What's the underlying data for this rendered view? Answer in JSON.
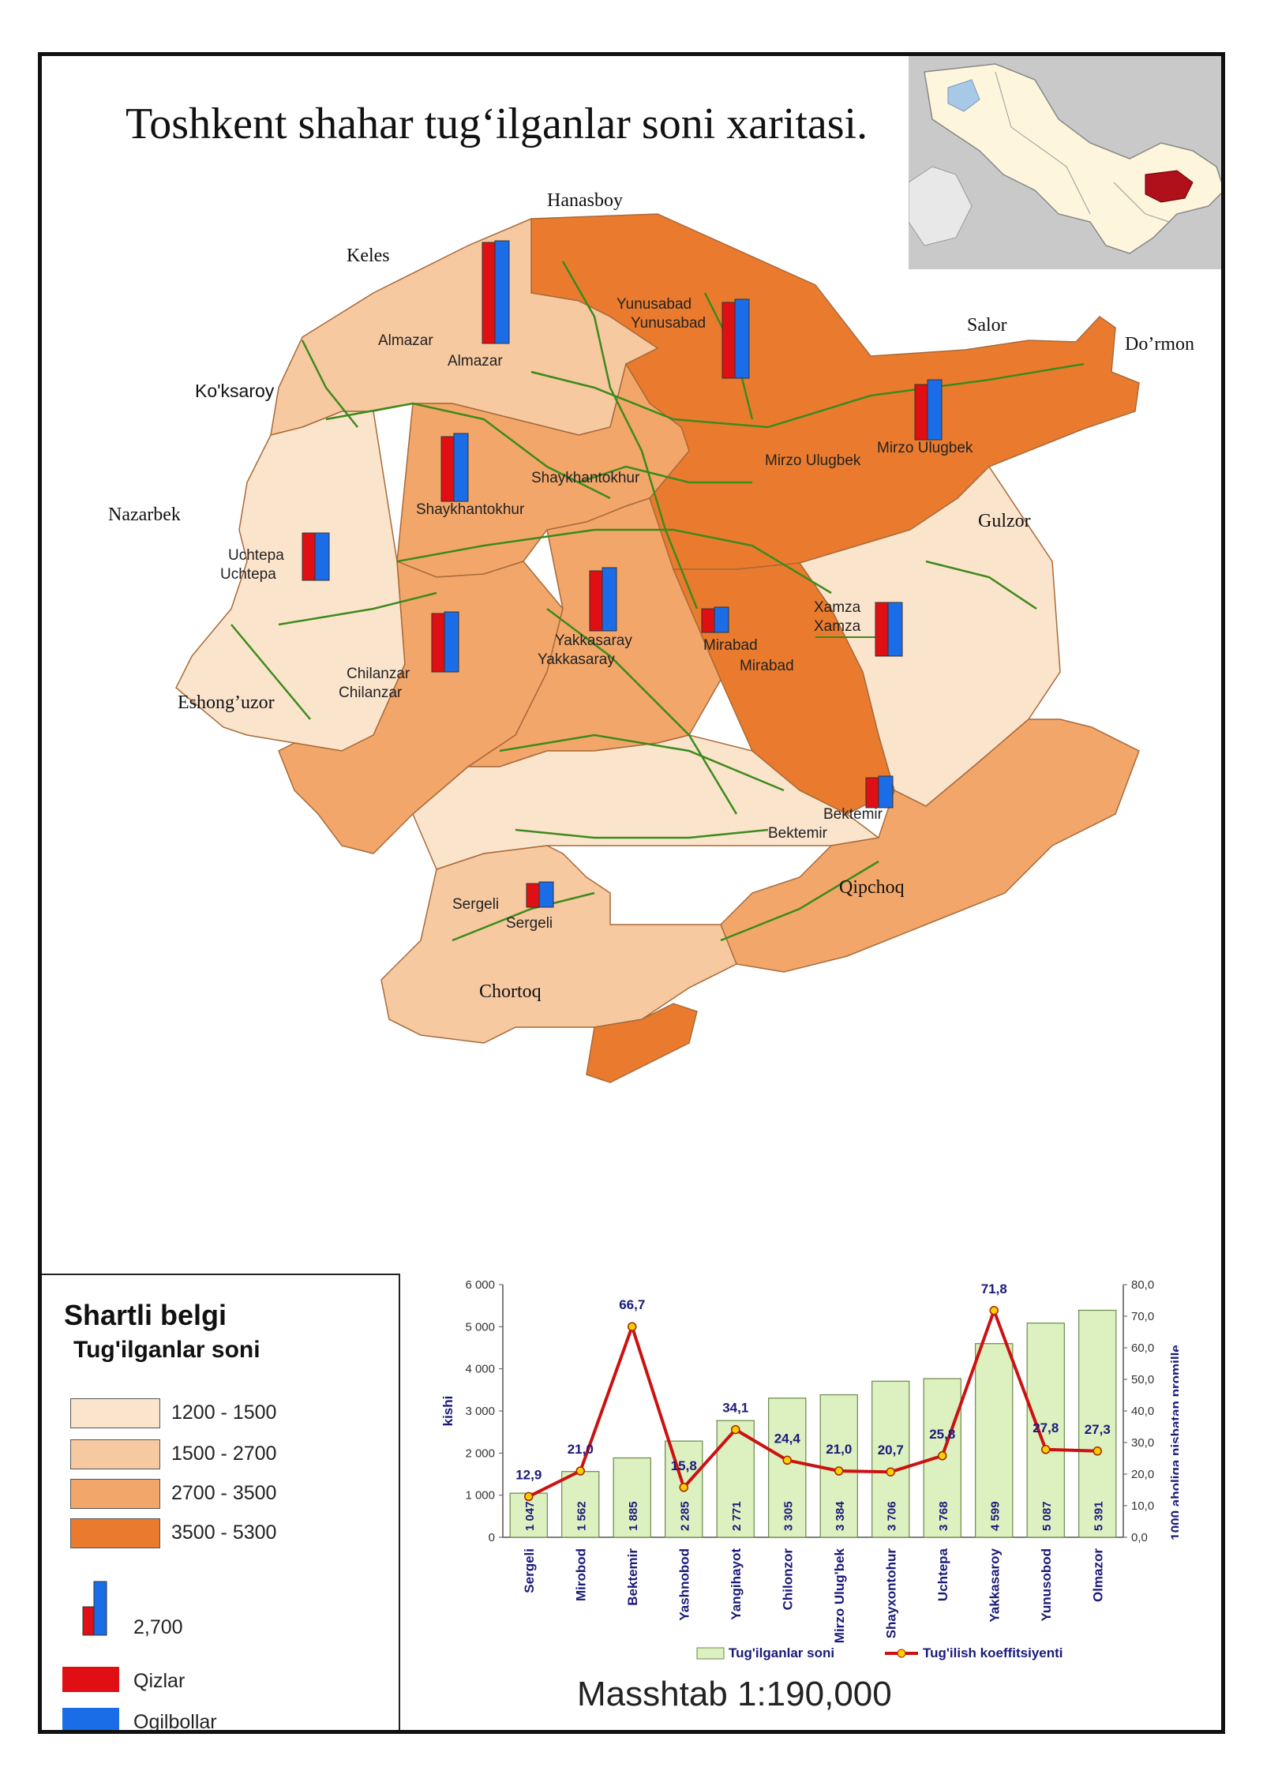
{
  "title": "Toshkent shahar tug‘ilganlar soni xaritasi.",
  "colors": {
    "class1": "#fbe4cc",
    "class2": "#f6c9a0",
    "class3": "#f2a66a",
    "class4": "#ea7b2e",
    "girls": "#e00f14",
    "boys": "#1a6de6",
    "roads": "#3c8a1c",
    "line": "#cc1111"
  },
  "surroundings": {
    "hanasboy": "Hanasboy",
    "keles": "Keles",
    "salor": "Salor",
    "dormon": "Do’rmon",
    "koksaroy": "Ko'ksaroy",
    "nazarbek": "Nazarbek",
    "gulzor": "Gulzor",
    "eshonguzor": "Eshong’uzor",
    "qipchoq": "Qipchoq",
    "chortoq": "Chortoq"
  },
  "districts": {
    "almazar": {
      "label1": "Almazar",
      "label2": "Almazar"
    },
    "yunusabad": {
      "label1": "Yunusabad",
      "label2": "Yunusabad"
    },
    "mirzo": {
      "label1": "Mirzo Ulugbek",
      "label2": "Mirzo Ulugbek"
    },
    "shaykh": {
      "label1": "Shaykhantokhur",
      "label2": "Shaykhantokhur"
    },
    "uchtepa": {
      "label1": "Uchtepa",
      "label2": "Uchtepa"
    },
    "chilanzar": {
      "label1": "Chilanzar",
      "label2": "Chilanzar"
    },
    "yakkasaray": {
      "label1": "Yakkasaray",
      "label2": "Yakkasaray"
    },
    "mirabad": {
      "label1": "Mirabad",
      "label2": "Mirabad"
    },
    "xamza": {
      "label1": "Xamza",
      "label2": "Xamza"
    },
    "bektemir": {
      "label1": "Bektemir",
      "label2": "Bektemir"
    },
    "sergeli": {
      "label1": "Sergeli",
      "label2": "Sergeli"
    }
  },
  "legend": {
    "title": "Shartli belgi",
    "subtitle": "Tug'ilganlar soni",
    "classes": [
      "1200 - 1500",
      "1500 - 2700",
      "2700 - 3500",
      "3500 - 5300"
    ],
    "bar_value": "2,700",
    "girls": "Qizlar",
    "boys": "Ogilbollar"
  },
  "scale": "Masshtab 1:190,000",
  "chart_data": {
    "type": "bar",
    "categories": [
      "Sergeli",
      "Mirobod",
      "Bektemir",
      "Yashnobod",
      "Yangihayot",
      "Chilonzor",
      "Mirzo Ulug'bek",
      "Shayxontohur",
      "Uchtepa",
      "Yakkasaroy",
      "Yunusobod",
      "Olmazor"
    ],
    "series": [
      {
        "name": "Tug'ilganlar soni",
        "type": "bar",
        "values": [
          1047,
          1562,
          1885,
          2285,
          2771,
          3305,
          3384,
          3706,
          3768,
          4599,
          5087,
          5391
        ],
        "labels": [
          "1 047",
          "1 562",
          "1 885",
          "2 285",
          "2 771",
          "3 305",
          "3 384",
          "3 706",
          "3 768",
          "4 599",
          "5 087",
          "5 391"
        ]
      },
      {
        "name": "Tug'ilish koeffitsiyenti",
        "type": "line",
        "axis": "right",
        "values": [
          12.9,
          21.0,
          66.7,
          15.8,
          34.1,
          24.4,
          21.0,
          20.7,
          25.8,
          71.8,
          27.8,
          27.3
        ],
        "labels": [
          "12,9",
          "21,0",
          "66,7",
          "15,8",
          "34,1",
          "24,4",
          "21,0",
          "20,7",
          "25,8",
          "71,8",
          "27,8",
          "27,3"
        ]
      }
    ],
    "ylabel": "kishi",
    "y2label": "1000 aholiga nisbatan promille",
    "ylim": [
      0,
      6000
    ],
    "y2lim": [
      0,
      80
    ],
    "yticks": [
      "0",
      "1 000",
      "2 000",
      "3 000",
      "4 000",
      "5 000",
      "6 000"
    ],
    "y2ticks": [
      "0,0",
      "10,0",
      "20,0",
      "30,0",
      "40,0",
      "50,0",
      "60,0",
      "70,0",
      "80,0"
    ],
    "legend_position": "bottom"
  }
}
